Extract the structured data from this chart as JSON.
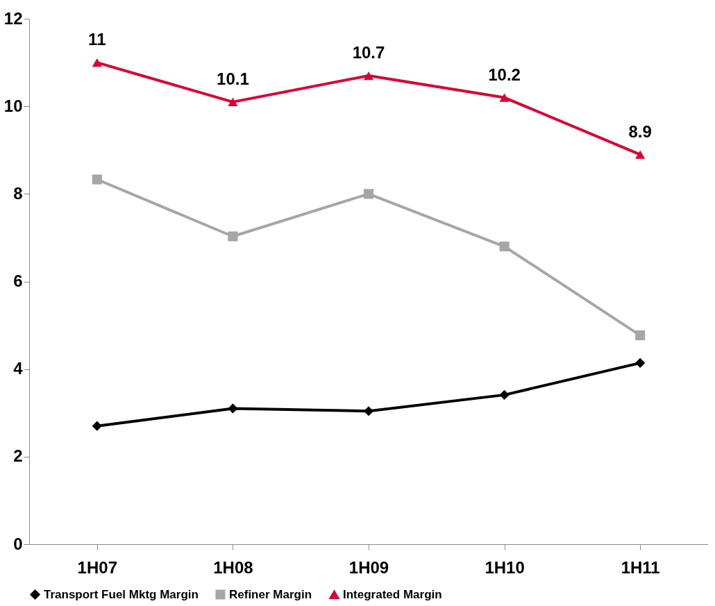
{
  "chart_data": {
    "type": "line",
    "categories": [
      "1H07",
      "1H08",
      "1H09",
      "1H10",
      "1H11"
    ],
    "ylim": [
      0,
      12
    ],
    "yticks": [
      0,
      2,
      4,
      6,
      8,
      10,
      12
    ],
    "grid": false,
    "legend": "bottom",
    "line_style": "solid",
    "series": [
      {
        "name": "Transport Fuel Mktg Margin",
        "color": "#000000",
        "marker": "diamond",
        "values": [
          2.7,
          3.1,
          3.04,
          3.41,
          4.14
        ]
      },
      {
        "name": "Refiner Margin",
        "color": "#a6a6a6",
        "marker": "square",
        "values": [
          8.33,
          7.03,
          8.0,
          6.8,
          4.77
        ]
      },
      {
        "name": "Integrated Margin",
        "color": "#dc0032",
        "marker": "triangle",
        "values": [
          11,
          10.1,
          10.7,
          10.2,
          8.9
        ],
        "value_labels": [
          "11",
          "10.1",
          "10.7",
          "10.2",
          "8.9"
        ]
      }
    ]
  }
}
